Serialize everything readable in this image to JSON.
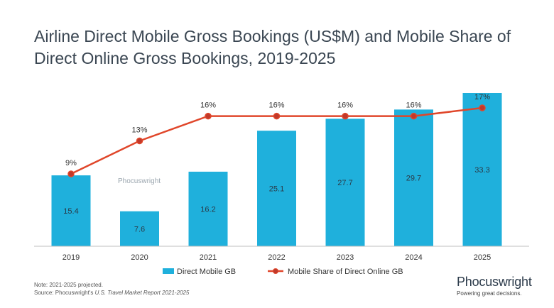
{
  "title": "Airline Direct Mobile Gross Bookings (US$M) and Mobile Share of Direct Online Gross Bookings, 2019-2025",
  "watermark": "Phocuswright",
  "footer": {
    "note": "Note: 2021-2025 projected.",
    "source_prefix": "Source: Phocuswright's ",
    "source_title": "U.S. Travel Market Report 2021-2025"
  },
  "brand": {
    "name": "Phocuswright",
    "tagline": "Powering great decisions."
  },
  "colors": {
    "bar": "#1fb0dc",
    "line": "#e0462a",
    "marker_fill": "#c0392b",
    "title": "#3a4652"
  },
  "chart_data": {
    "type": "bar",
    "categories": [
      "2019",
      "2020",
      "2021",
      "2022",
      "2023",
      "2024",
      "2025"
    ],
    "series": [
      {
        "name": "Direct Mobile GB",
        "type": "bar",
        "values": [
          15.4,
          7.6,
          16.2,
          25.1,
          27.7,
          29.7,
          33.3
        ],
        "labels": [
          "15.4",
          "7.6",
          "16.2",
          "25.1",
          "27.7",
          "29.7",
          "33.3"
        ]
      },
      {
        "name": "Mobile Share of Direct Online GB",
        "type": "line",
        "values": [
          9,
          13,
          16,
          16,
          16,
          16,
          17
        ],
        "labels": [
          "9%",
          "13%",
          "16%",
          "16%",
          "16%",
          "16%",
          "17%"
        ]
      }
    ],
    "bar_ylim": [
      0,
      33.3
    ],
    "line_ylim": [
      0,
      17
    ],
    "legend_position": "bottom",
    "grid": false
  }
}
